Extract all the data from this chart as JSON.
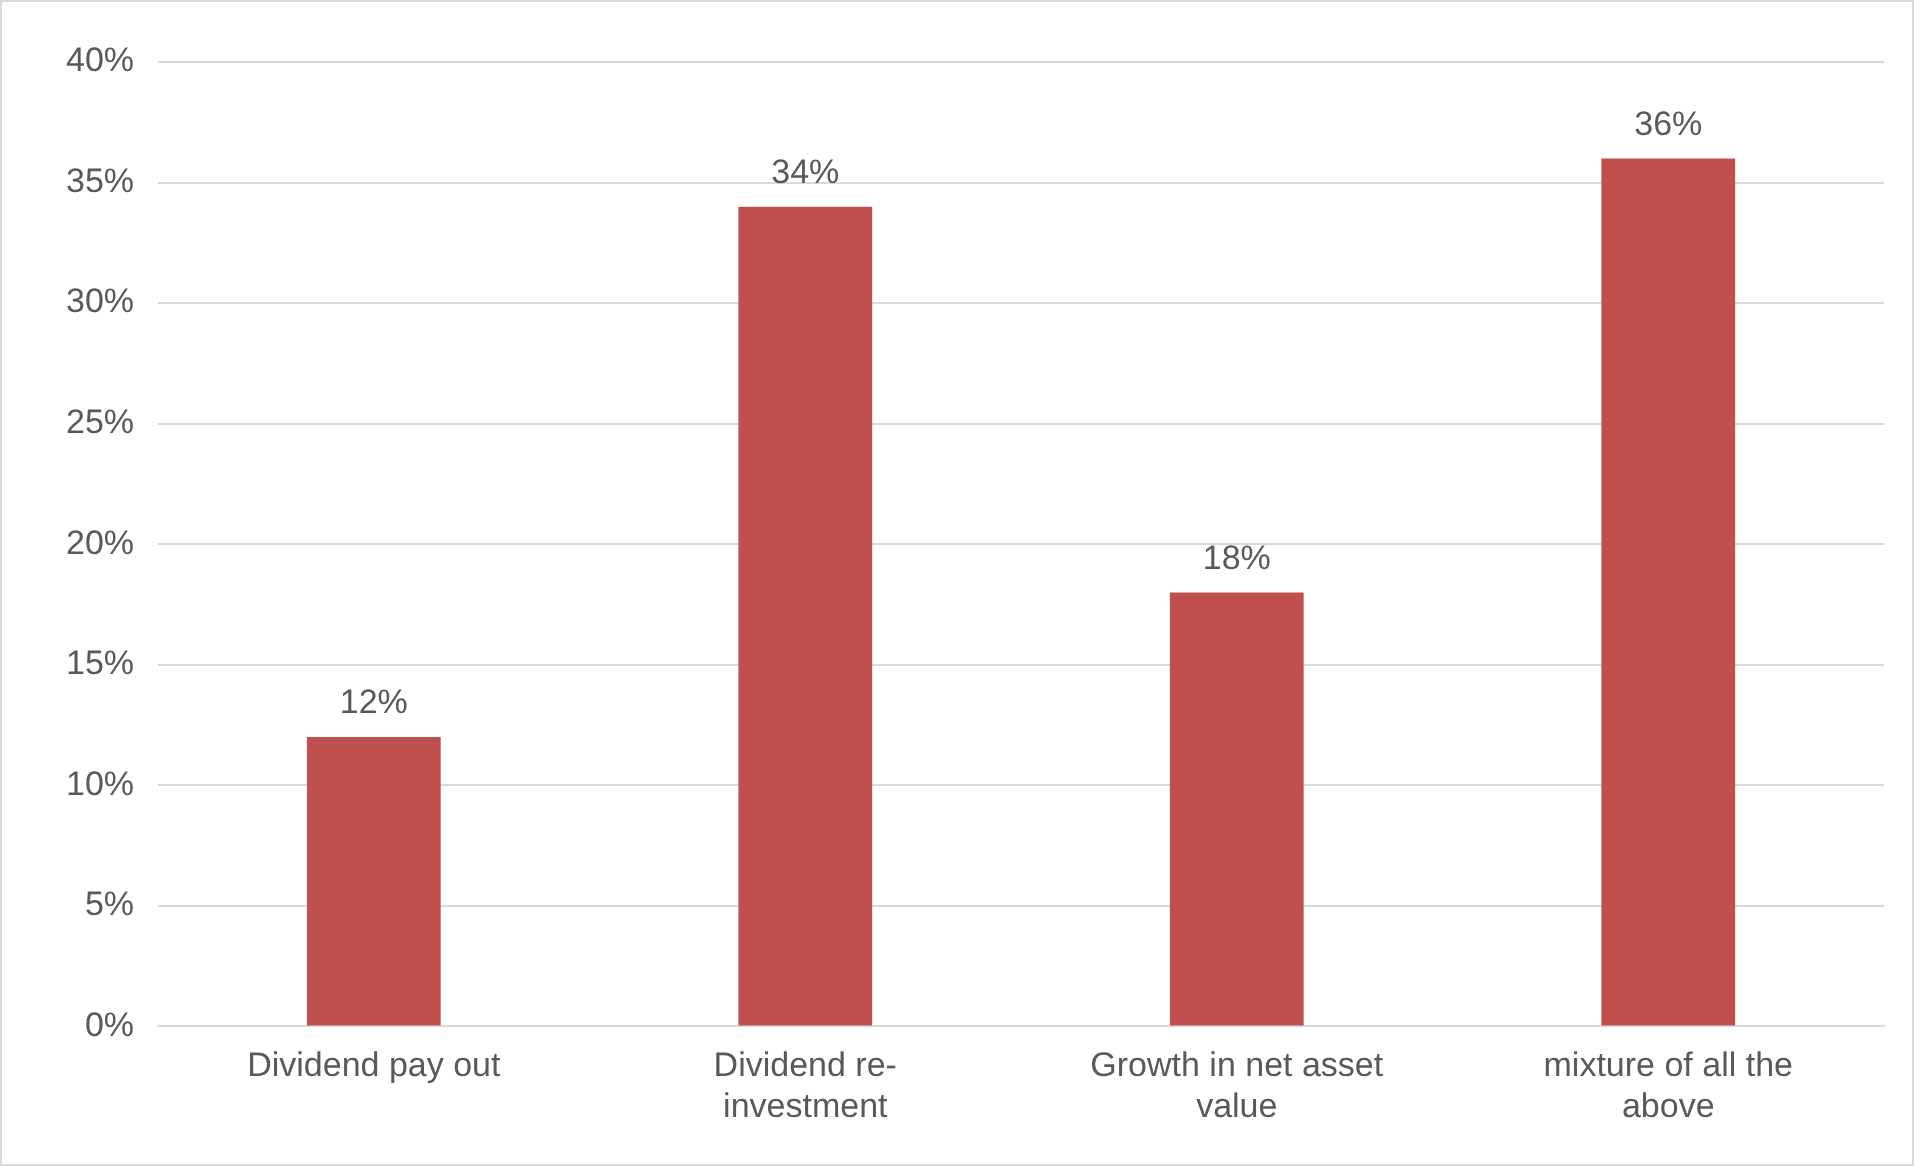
{
  "chart_data": {
    "type": "bar",
    "categories": [
      "Dividend pay out",
      "Dividend re-investment",
      "Growth in net asset value",
      "mixture of all the above"
    ],
    "values": [
      12,
      34,
      18,
      36
    ],
    "value_labels": [
      "12%",
      "34%",
      "18%",
      "36%"
    ],
    "color": "#c0504d",
    "ylim": [
      0,
      40
    ],
    "yticks": [
      {
        "value": 0,
        "label": "0%"
      },
      {
        "value": 5,
        "label": "5%"
      },
      {
        "value": 10,
        "label": "10%"
      },
      {
        "value": 15,
        "label": "15%"
      },
      {
        "value": 20,
        "label": "20%"
      },
      {
        "value": 25,
        "label": "25%"
      },
      {
        "value": 30,
        "label": "30%"
      },
      {
        "value": 35,
        "label": "35%"
      },
      {
        "value": 40,
        "label": "40%"
      }
    ],
    "grid": "y",
    "legend": false
  }
}
